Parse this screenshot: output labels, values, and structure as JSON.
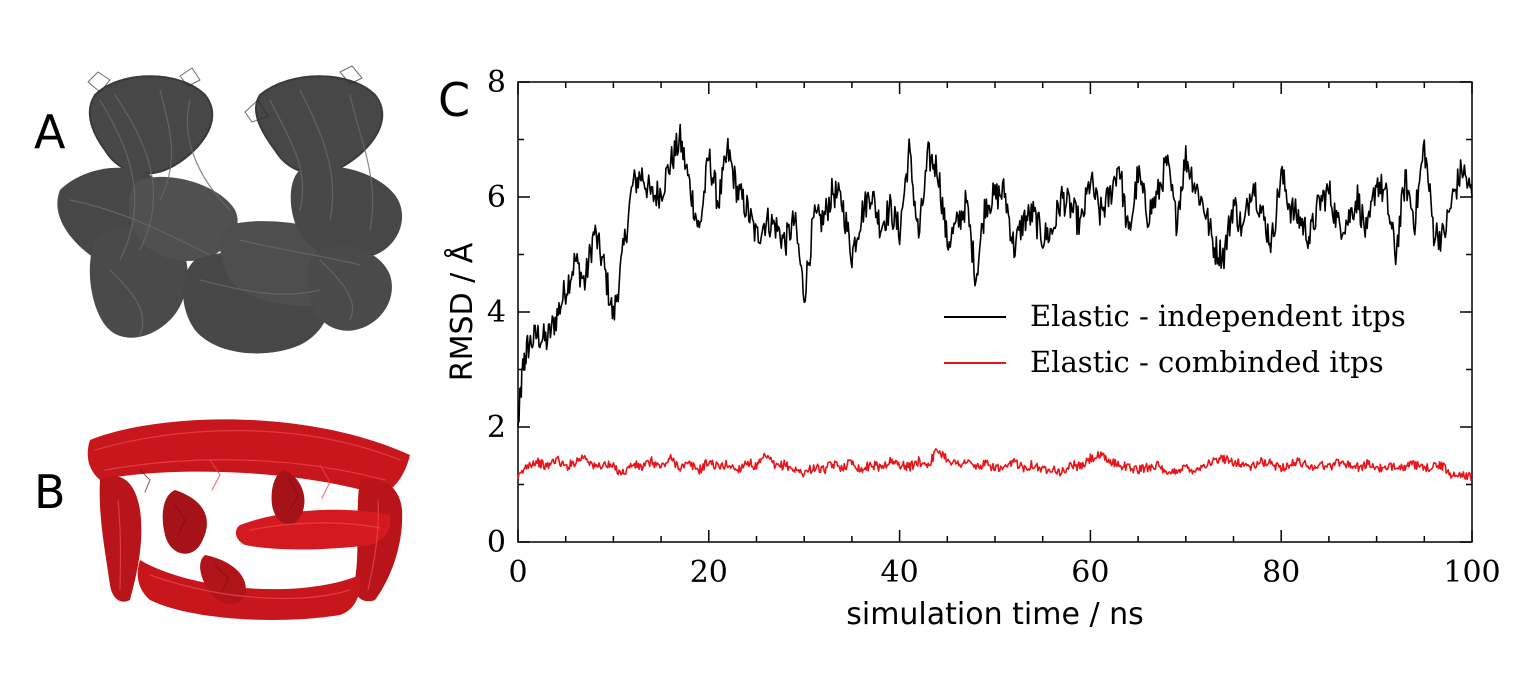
{
  "panels": {
    "A": {
      "letter": "A",
      "color": "#474747"
    },
    "B": {
      "letter": "B",
      "color": "#c8161d"
    },
    "C": {
      "letter": "C"
    }
  },
  "chart_data": {
    "type": "line",
    "xlabel": "simulation time / ns",
    "ylabel": "RMSD / Å",
    "xlim": [
      0,
      100
    ],
    "ylim": [
      0,
      8
    ],
    "xticks": [
      0,
      20,
      40,
      60,
      80,
      100
    ],
    "yticks": [
      0,
      2,
      4,
      6,
      8
    ],
    "grid": false,
    "legend": "center-right",
    "series": [
      {
        "name": "Elastic - independent itps",
        "color": "#000000",
        "x": [
          0,
          0.5,
          1,
          2,
          3,
          4,
          5,
          6,
          7,
          8,
          9,
          10,
          11,
          12,
          13,
          14,
          15,
          16,
          17,
          18,
          19,
          20,
          21,
          22,
          23,
          24,
          25,
          26,
          27,
          28,
          29,
          30,
          31,
          32,
          33,
          34,
          35,
          36,
          37,
          38,
          39,
          40,
          41,
          42,
          43,
          44,
          45,
          46,
          47,
          48,
          49,
          50,
          51,
          52,
          53,
          54,
          55,
          56,
          57,
          58,
          59,
          60,
          61,
          62,
          63,
          64,
          65,
          66,
          67,
          68,
          69,
          70,
          71,
          72,
          73,
          74,
          75,
          76,
          77,
          78,
          79,
          80,
          81,
          82,
          83,
          84,
          85,
          86,
          87,
          88,
          89,
          90,
          91,
          92,
          93,
          94,
          95,
          96,
          97,
          98,
          99,
          100
        ],
        "y": [
          2.0,
          3.0,
          3.4,
          3.6,
          3.5,
          3.9,
          4.4,
          4.9,
          4.5,
          5.4,
          4.8,
          3.9,
          5.0,
          6.2,
          6.4,
          6.0,
          6.1,
          6.6,
          7.0,
          6.2,
          5.4,
          6.7,
          5.9,
          6.8,
          6.1,
          5.8,
          5.3,
          5.6,
          5.5,
          5.2,
          5.6,
          4.3,
          5.6,
          5.6,
          6.1,
          5.9,
          5.0,
          5.7,
          6.1,
          5.5,
          5.8,
          5.4,
          6.8,
          5.3,
          6.7,
          6.5,
          5.2,
          5.5,
          5.9,
          4.6,
          5.9,
          6.0,
          6.1,
          5.1,
          5.6,
          5.7,
          5.3,
          5.4,
          6.0,
          5.8,
          5.5,
          6.3,
          5.7,
          6.0,
          6.6,
          5.3,
          6.4,
          5.7,
          6.0,
          6.6,
          5.6,
          6.7,
          6.2,
          5.8,
          5.1,
          5.0,
          5.9,
          5.4,
          6.3,
          5.7,
          5.2,
          6.4,
          5.8,
          5.6,
          5.3,
          5.9,
          6.1,
          5.5,
          5.6,
          6.0,
          5.3,
          6.3,
          6.0,
          5.0,
          6.3,
          5.6,
          6.9,
          5.4,
          5.3,
          6.0,
          6.5,
          6.0
        ]
      },
      {
        "name": "Elastic - combinded itps",
        "color": "#e8161a",
        "x": [
          0,
          1,
          2,
          3,
          4,
          5,
          6,
          7,
          8,
          9,
          10,
          11,
          12,
          13,
          14,
          15,
          16,
          17,
          18,
          19,
          20,
          21,
          22,
          23,
          24,
          25,
          26,
          27,
          28,
          29,
          30,
          31,
          32,
          33,
          34,
          35,
          36,
          37,
          38,
          39,
          40,
          41,
          42,
          43,
          44,
          45,
          46,
          47,
          48,
          49,
          50,
          51,
          52,
          53,
          54,
          55,
          56,
          57,
          58,
          59,
          60,
          61,
          62,
          63,
          64,
          65,
          66,
          67,
          68,
          69,
          70,
          71,
          72,
          73,
          74,
          75,
          76,
          77,
          78,
          79,
          80,
          81,
          82,
          83,
          84,
          85,
          86,
          87,
          88,
          89,
          90,
          91,
          92,
          93,
          94,
          95,
          96,
          97,
          98,
          99,
          100
        ],
        "y": [
          1.1,
          1.35,
          1.4,
          1.3,
          1.45,
          1.3,
          1.4,
          1.5,
          1.3,
          1.35,
          1.3,
          1.2,
          1.35,
          1.3,
          1.4,
          1.3,
          1.45,
          1.3,
          1.35,
          1.25,
          1.4,
          1.3,
          1.35,
          1.25,
          1.4,
          1.3,
          1.5,
          1.3,
          1.35,
          1.25,
          1.2,
          1.3,
          1.25,
          1.35,
          1.3,
          1.4,
          1.25,
          1.35,
          1.3,
          1.4,
          1.35,
          1.3,
          1.4,
          1.35,
          1.6,
          1.45,
          1.35,
          1.4,
          1.3,
          1.35,
          1.3,
          1.25,
          1.4,
          1.3,
          1.35,
          1.25,
          1.3,
          1.2,
          1.35,
          1.3,
          1.45,
          1.5,
          1.4,
          1.35,
          1.3,
          1.25,
          1.3,
          1.35,
          1.15,
          1.25,
          1.3,
          1.25,
          1.35,
          1.4,
          1.45,
          1.4,
          1.35,
          1.3,
          1.4,
          1.35,
          1.3,
          1.35,
          1.4,
          1.3,
          1.35,
          1.3,
          1.4,
          1.35,
          1.3,
          1.35,
          1.3,
          1.25,
          1.35,
          1.3,
          1.35,
          1.25,
          1.35,
          1.3,
          1.15,
          1.2,
          1.1
        ]
      }
    ]
  }
}
